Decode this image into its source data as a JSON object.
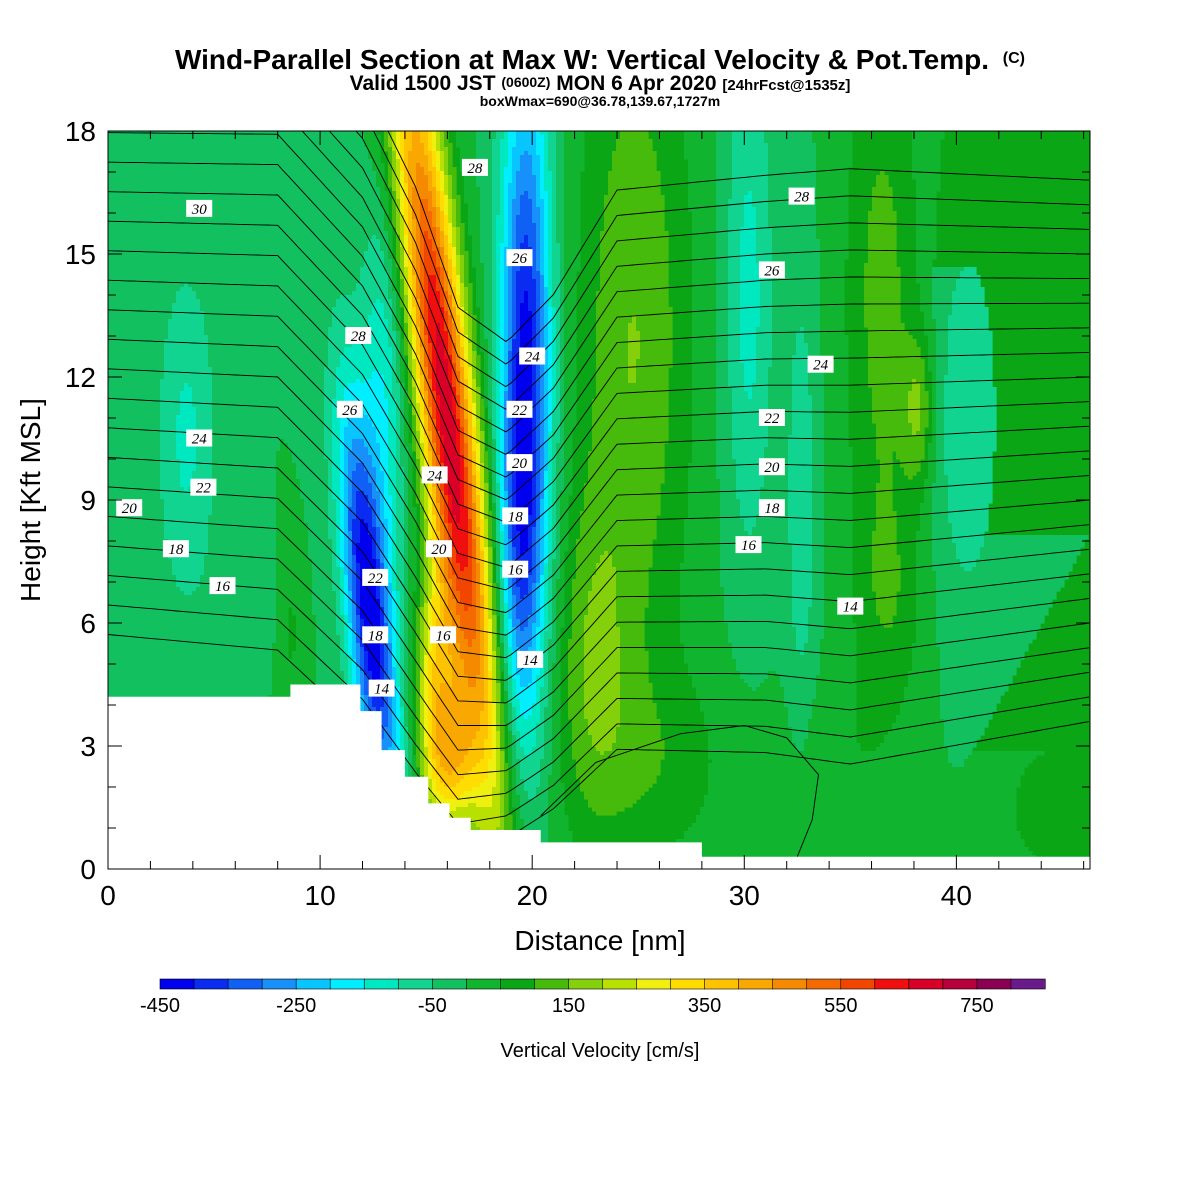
{
  "header": {
    "title": "Wind-Parallel Section at Max W: Vertical Velocity & Pot.Temp.",
    "title_mark": "(C)",
    "valid_prefix": "Valid 1500 JST",
    "valid_zulu": "(0600Z)",
    "valid_date": "MON 6 Apr 2020",
    "forecast": "[24hrFcst@1535z]",
    "box_wmax": "boxWmax=690@36.78,139.67,1727m"
  },
  "chart_data": {
    "type": "heatmap",
    "title": "Wind-Parallel Section at Max W: Vertical Velocity & Pot.Temp.",
    "xlabel": "Distance [nm]",
    "ylabel": "Height [Kft MSL]",
    "xlim": [
      0,
      46.3
    ],
    "ylim": [
      0,
      18
    ],
    "xticks": [
      0,
      10,
      20,
      30,
      40
    ],
    "yticks": [
      0,
      3,
      6,
      9,
      12,
      15,
      18
    ],
    "grid": false,
    "colorbar": {
      "label": "Vertical Velocity [cm/s]",
      "range": [
        -450,
        800
      ],
      "step": 50,
      "tick_labels": [
        "-450",
        "-250",
        "-50",
        "150",
        "350",
        "550",
        "750"
      ],
      "tick_values": [
        -450,
        -250,
        -50,
        150,
        350,
        550,
        750
      ],
      "colors": [
        "#0000ee",
        "#0a2cf0",
        "#1160f5",
        "#1890fa",
        "#08c4ff",
        "#00eeff",
        "#00e8c0",
        "#10d490",
        "#12c060",
        "#11b42e",
        "#0aa616",
        "#46bb0c",
        "#84d00a",
        "#b8e000",
        "#f0f010",
        "#ffdd00",
        "#fdc200",
        "#f8a800",
        "#f58a00",
        "#f56a00",
        "#f24600",
        "#f00e0e",
        "#d80026",
        "#b8003c",
        "#8c0054",
        "#6a1a8a"
      ]
    },
    "terrain_kft": {
      "x": [
        0,
        8.6,
        8.6,
        11.9,
        11.9,
        12.9,
        12.9,
        14.0,
        14.0,
        15.1,
        15.1,
        16.1,
        16.1,
        17.1,
        17.1,
        20.4,
        20.4,
        28.0,
        28.0,
        46.3
      ],
      "y": [
        4.2,
        4.2,
        4.5,
        4.5,
        3.85,
        3.85,
        2.9,
        2.9,
        2.25,
        2.25,
        1.6,
        1.6,
        1.25,
        1.25,
        0.95,
        0.95,
        0.65,
        0.65,
        0.3,
        0.3
      ]
    },
    "velocity_features": [
      {
        "x": 16.0,
        "y": 11.0,
        "sx": 0.95,
        "sy": 6.8,
        "tilt": -0.22,
        "w": 690
      },
      {
        "x": 15.4,
        "y": 4.2,
        "sx": 0.65,
        "sy": 2.2,
        "tilt": 0.0,
        "w": 300
      },
      {
        "x": 16.3,
        "y": 2.6,
        "sx": 0.7,
        "sy": 1.2,
        "tilt": 0.0,
        "w": 250
      },
      {
        "x": 12.3,
        "y": 6.3,
        "sx": 0.75,
        "sy": 3.6,
        "tilt": -0.18,
        "w": -430
      },
      {
        "x": 13.0,
        "y": 11.5,
        "sx": 0.8,
        "sy": 3.5,
        "tilt": 0.0,
        "w": -150
      },
      {
        "x": 19.7,
        "y": 12.5,
        "sx": 0.85,
        "sy": 5.0,
        "tilt": 0.0,
        "w": -420
      },
      {
        "x": 19.3,
        "y": 6.8,
        "sx": 0.85,
        "sy": 2.8,
        "tilt": 0.0,
        "w": -170
      },
      {
        "x": 19.5,
        "y": 2.2,
        "sx": 0.8,
        "sy": 1.8,
        "tilt": 0.0,
        "w": -40
      },
      {
        "x": 24.8,
        "y": 13.0,
        "sx": 1.9,
        "sy": 6.0,
        "tilt": 0.0,
        "w": 150
      },
      {
        "x": 22.8,
        "y": 5.0,
        "sx": 1.3,
        "sy": 3.0,
        "tilt": 0.0,
        "w": 120
      },
      {
        "x": 26.0,
        "y": 2.5,
        "sx": 2.5,
        "sy": 1.8,
        "tilt": 0.0,
        "w": 70
      },
      {
        "x": 30.2,
        "y": 14.0,
        "sx": 0.8,
        "sy": 4.5,
        "tilt": 0.0,
        "w": -120
      },
      {
        "x": 32.7,
        "y": 9.0,
        "sx": 0.5,
        "sy": 4.0,
        "tilt": 0.0,
        "w": -90
      },
      {
        "x": 36.5,
        "y": 14.0,
        "sx": 1.3,
        "sy": 5.0,
        "tilt": 0.0,
        "w": 120
      },
      {
        "x": 36.8,
        "y": 6.5,
        "sx": 1.2,
        "sy": 2.0,
        "tilt": 0.0,
        "w": 70
      },
      {
        "x": 38.2,
        "y": 11.2,
        "sx": 0.5,
        "sy": 1.3,
        "tilt": 0.0,
        "w": 130
      },
      {
        "x": 40.5,
        "y": 11.0,
        "sx": 1.2,
        "sy": 3.5,
        "tilt": 0.0,
        "w": -90
      },
      {
        "x": 3.7,
        "y": 10.5,
        "sx": 1.0,
        "sy": 3.0,
        "tilt": 0.0,
        "w": -110
      },
      {
        "x": 6.4,
        "y": 6.5,
        "sx": 1.0,
        "sy": 1.0,
        "tilt": 0.0,
        "w": -40
      },
      {
        "x": 8.6,
        "y": 5.8,
        "sx": 0.4,
        "sy": 1.2,
        "tilt": 0.0,
        "w": 60
      },
      {
        "x": 44.5,
        "y": 1.5,
        "sx": 1.8,
        "sy": 1.4,
        "tilt": 0.0,
        "w": 80
      },
      {
        "x": 34.5,
        "y": 2.6,
        "sx": 2.0,
        "sy": 1.5,
        "tilt": 0.0,
        "w": 40
      }
    ],
    "theta_contour_labels": [
      {
        "text": "30",
        "x": 4.3,
        "y": 16.1
      },
      {
        "text": "28",
        "x": 17.3,
        "y": 17.1
      },
      {
        "text": "28",
        "x": 32.7,
        "y": 16.4
      },
      {
        "text": "26",
        "x": 19.4,
        "y": 14.9
      },
      {
        "text": "26",
        "x": 31.3,
        "y": 14.6
      },
      {
        "text": "28",
        "x": 11.8,
        "y": 13.0
      },
      {
        "text": "24",
        "x": 20.0,
        "y": 12.5
      },
      {
        "text": "24",
        "x": 33.6,
        "y": 12.3
      },
      {
        "text": "26",
        "x": 11.4,
        "y": 11.2
      },
      {
        "text": "22",
        "x": 19.4,
        "y": 11.2
      },
      {
        "text": "22",
        "x": 31.3,
        "y": 11.0
      },
      {
        "text": "24",
        "x": 4.3,
        "y": 10.5
      },
      {
        "text": "20",
        "x": 19.4,
        "y": 9.9
      },
      {
        "text": "20",
        "x": 31.3,
        "y": 9.8
      },
      {
        "text": "24",
        "x": 15.4,
        "y": 9.6
      },
      {
        "text": "22",
        "x": 4.5,
        "y": 9.3
      },
      {
        "text": "18",
        "x": 19.2,
        "y": 8.6
      },
      {
        "text": "18",
        "x": 31.3,
        "y": 8.8
      },
      {
        "text": "20",
        "x": 1.0,
        "y": 8.8
      },
      {
        "text": "16",
        "x": 30.2,
        "y": 7.9
      },
      {
        "text": "18",
        "x": 3.2,
        "y": 7.8
      },
      {
        "text": "20",
        "x": 15.6,
        "y": 7.8
      },
      {
        "text": "16",
        "x": 19.2,
        "y": 7.3
      },
      {
        "text": "22",
        "x": 12.6,
        "y": 7.1
      },
      {
        "text": "16",
        "x": 5.4,
        "y": 6.9
      },
      {
        "text": "14",
        "x": 35.0,
        "y": 6.4
      },
      {
        "text": "18",
        "x": 12.6,
        "y": 5.7
      },
      {
        "text": "16",
        "x": 15.8,
        "y": 5.7
      },
      {
        "text": "14",
        "x": 19.9,
        "y": 5.1
      },
      {
        "text": "14",
        "x": 12.9,
        "y": 4.4
      }
    ]
  }
}
